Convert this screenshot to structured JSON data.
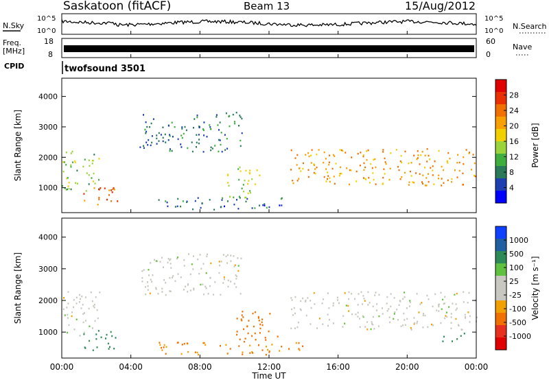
{
  "header": {
    "station": "Saskatoon (fitACF)",
    "beam": "Beam 13",
    "date": "15/Aug/2012"
  },
  "summary": {
    "nsky_label": "N.Sky",
    "nsky_ticks": [
      "10^5",
      "10^0"
    ],
    "nsearch_label": "N.Search",
    "nsearch_ticks": [
      "10^5",
      "10^0"
    ],
    "freq_label_1": "Freq.",
    "freq_label_2": "[MHz]",
    "freq_ticks": [
      "18",
      "8"
    ],
    "nave_label": "Nave",
    "nave_ticks": [
      "60",
      "0"
    ],
    "cpid_label": "CPID",
    "cpid_value": "twofsound 3501"
  },
  "colors": {
    "power_scale": [
      "#0000ff",
      "#1f3fb0",
      "#2a7a5a",
      "#3fae3f",
      "#9bd43a",
      "#f0d000",
      "#f7a000",
      "#f07000",
      "#e83000",
      "#e00000"
    ],
    "velocity_scale": [
      "#1040ff",
      "#2060a0",
      "#2e8b57",
      "#60c040",
      "#c8c8c0",
      "#c8c8c0",
      "#f0a000",
      "#f07000",
      "#e83020",
      "#e00000"
    ]
  },
  "chart_data": [
    {
      "type": "heatmap",
      "name": "power",
      "xlabel": "",
      "ylabel": "Slant Range [km]",
      "xlim": [
        "00:00",
        "24:00"
      ],
      "ylim": [
        180,
        4600
      ],
      "yticks": [
        "1000",
        "2000",
        "3000",
        "4000"
      ],
      "colorbar_label": "Power [dB]",
      "colorbar_ticks": [
        "28",
        "24",
        "20",
        "16",
        "12",
        "8",
        "4"
      ],
      "scatter_regions": [
        {
          "t_start": 0.0,
          "t_end": 2.2,
          "r_min": 900,
          "r_max": 2300,
          "level": 14
        },
        {
          "t_start": 1.2,
          "t_end": 3.2,
          "r_min": 450,
          "r_max": 1100,
          "level": 25
        },
        {
          "t_start": 4.5,
          "t_end": 10.5,
          "r_min": 2200,
          "r_max": 3500,
          "level": 9
        },
        {
          "t_start": 9.5,
          "t_end": 11.5,
          "r_min": 700,
          "r_max": 1800,
          "level": 16
        },
        {
          "t_start": 13.2,
          "t_end": 24.0,
          "r_min": 1100,
          "r_max": 2300,
          "level": 22
        },
        {
          "t_start": 5.5,
          "t_end": 13.0,
          "r_min": 300,
          "r_max": 700,
          "level": 8
        }
      ]
    },
    {
      "type": "heatmap",
      "name": "velocity",
      "xlabel": "Time UT",
      "ylabel": "Slant Range [km]",
      "xlim": [
        "00:00",
        "24:00"
      ],
      "ylim": [
        180,
        4600
      ],
      "yticks": [
        "1000",
        "2000",
        "3000",
        "4000"
      ],
      "xticks": [
        "00:00",
        "04:00",
        "08:00",
        "12:00",
        "16:00",
        "20:00",
        "00:00"
      ],
      "colorbar_label": "Velocity [m s⁻¹]",
      "colorbar_ticks": [
        "1000",
        "500",
        "100",
        "25",
        "-25",
        "-100",
        "-500",
        "-1000"
      ],
      "scatter_regions": [
        {
          "t_start": 0.0,
          "t_end": 2.2,
          "r_min": 900,
          "r_max": 2300,
          "level": 0
        },
        {
          "t_start": 1.2,
          "t_end": 3.2,
          "r_min": 450,
          "r_max": 1100,
          "level": 100
        },
        {
          "t_start": 4.5,
          "t_end": 10.5,
          "r_min": 2200,
          "r_max": 3500,
          "level": 0
        },
        {
          "t_start": 10.0,
          "t_end": 12.5,
          "r_min": 700,
          "r_max": 1700,
          "level": -300
        },
        {
          "t_start": 13.2,
          "t_end": 24.0,
          "r_min": 1100,
          "r_max": 2300,
          "level": 0
        },
        {
          "t_start": 5.5,
          "t_end": 14.0,
          "r_min": 300,
          "r_max": 700,
          "level": -100
        },
        {
          "t_start": 22.0,
          "t_end": 23.5,
          "r_min": 700,
          "r_max": 1000,
          "level": 100
        }
      ]
    }
  ]
}
